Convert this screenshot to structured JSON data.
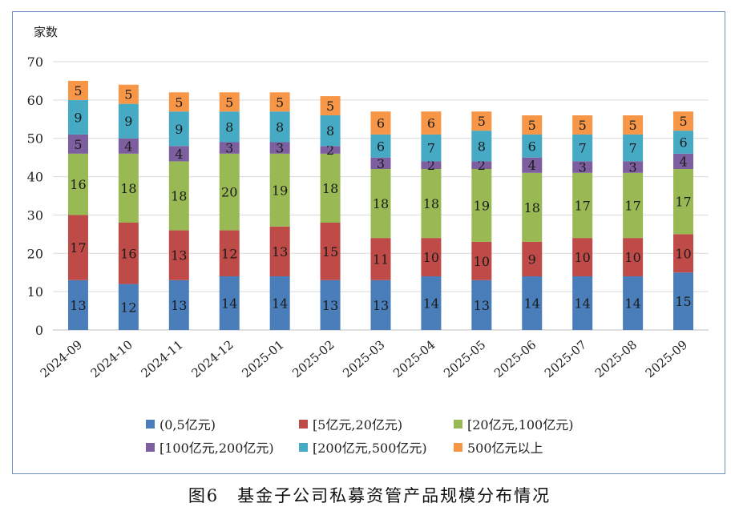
{
  "caption": "图6　基金子公司私募资管产品规模分布情况",
  "chart_data": {
    "type": "bar",
    "stacked": true,
    "title": "",
    "ylabel": "家数",
    "xlabel": "",
    "ylim": [
      0,
      70
    ],
    "yticks": [
      0,
      10,
      20,
      30,
      40,
      50,
      60,
      70
    ],
    "grid": true,
    "legend_position": "bottom",
    "categories": [
      "2024-09",
      "2024-10",
      "2024-11",
      "2024-12",
      "2025-01",
      "2025-02",
      "2025-03",
      "2025-04",
      "2025-05",
      "2025-06",
      "2025-07",
      "2025-08",
      "2025-09"
    ],
    "series": [
      {
        "name": "(0,5亿元)",
        "color": "#4a7ebb",
        "values": [
          13,
          12,
          13,
          14,
          14,
          13,
          13,
          14,
          13,
          14,
          14,
          14,
          15
        ]
      },
      {
        "name": "[5亿元,20亿元)",
        "color": "#be4b48",
        "values": [
          17,
          16,
          13,
          12,
          13,
          15,
          11,
          10,
          10,
          9,
          10,
          10,
          10
        ]
      },
      {
        "name": "[20亿元,100亿元)",
        "color": "#98b954",
        "values": [
          16,
          18,
          18,
          20,
          19,
          18,
          18,
          18,
          19,
          18,
          17,
          17,
          17
        ]
      },
      {
        "name": "[100亿元,200亿元)",
        "color": "#7d5fa0",
        "values": [
          5,
          4,
          4,
          3,
          3,
          2,
          3,
          2,
          2,
          4,
          3,
          3,
          4
        ]
      },
      {
        "name": "[200亿元,500亿元)",
        "color": "#46aac5",
        "values": [
          9,
          9,
          9,
          8,
          8,
          8,
          6,
          7,
          8,
          6,
          7,
          7,
          6
        ]
      },
      {
        "name": "500亿元以上",
        "color": "#f79646",
        "values": [
          5,
          5,
          5,
          5,
          5,
          5,
          6,
          6,
          5,
          5,
          5,
          5,
          5
        ]
      }
    ]
  }
}
